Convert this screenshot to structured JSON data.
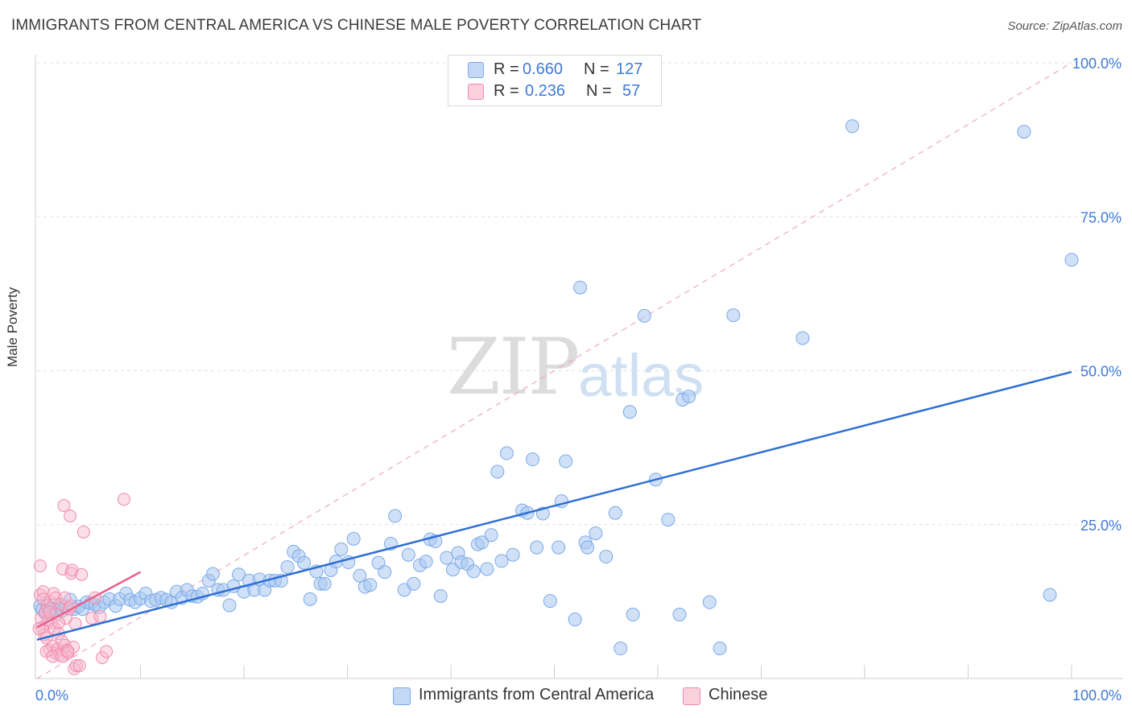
{
  "header": {
    "title": "IMMIGRANTS FROM CENTRAL AMERICA VS CHINESE MALE POVERTY CORRELATION CHART",
    "source": "Source: ZipAtlas.com"
  },
  "watermark": {
    "zip": "ZIP",
    "atlas": "atlas"
  },
  "stats": [
    {
      "r_label": "R =",
      "r_value": "0.660",
      "n_label": "N =",
      "n_value": "127",
      "color": "#a9c8f0"
    },
    {
      "r_label": "R =",
      "r_value": "0.236",
      "n_label": "N =",
      "n_value": "57",
      "color": "#f6b8cb"
    }
  ],
  "legend": [
    {
      "label": "Immigrants from Central America",
      "color": "#a9c8f0"
    },
    {
      "label": "Chinese",
      "color": "#f6b8cb"
    }
  ],
  "chart_data": {
    "type": "scatter",
    "title": "IMMIGRANTS FROM CENTRAL AMERICA VS CHINESE MALE POVERTY CORRELATION CHART",
    "xlabel": "",
    "ylabel": "Male Poverty",
    "xlim": [
      0,
      100
    ],
    "ylim": [
      0,
      100
    ],
    "x_tick_labels": [
      "0.0%",
      "100.0%"
    ],
    "y_tick_labels": [
      "25.0%",
      "50.0%",
      "75.0%",
      "100.0%"
    ],
    "y_ticks": [
      25,
      50,
      75,
      100
    ],
    "grid": true,
    "legend_position": "bottom",
    "series": [
      {
        "name": "Immigrants from Central America",
        "color": "#7baae8",
        "trend": {
          "x": [
            0,
            100
          ],
          "y": [
            6.3,
            49.8
          ],
          "color": "#2f6fd3"
        },
        "points": [
          [
            0.3,
            11.8
          ],
          [
            0.5,
            11.2
          ],
          [
            0.8,
            10.6
          ],
          [
            1.0,
            11.9
          ],
          [
            1.2,
            11.2
          ],
          [
            1.4,
            10.8
          ],
          [
            1.6,
            11.4
          ],
          [
            1.8,
            11.1
          ],
          [
            2.2,
            11.8
          ],
          [
            2.5,
            11.1
          ],
          [
            2.8,
            11.6
          ],
          [
            3.2,
            12.8
          ],
          [
            3.6,
            11.3
          ],
          [
            4.0,
            11.7
          ],
          [
            4.4,
            11.3
          ],
          [
            4.8,
            12.4
          ],
          [
            5.2,
            12.2
          ],
          [
            5.6,
            12.0
          ],
          [
            6.0,
            11.6
          ],
          [
            6.5,
            12.4
          ],
          [
            7.0,
            12.9
          ],
          [
            7.6,
            11.8
          ],
          [
            8.0,
            12.9
          ],
          [
            8.6,
            13.8
          ],
          [
            9.0,
            12.8
          ],
          [
            9.5,
            12.4
          ],
          [
            10.0,
            13.0
          ],
          [
            10.5,
            13.8
          ],
          [
            11.0,
            12.6
          ],
          [
            11.5,
            12.8
          ],
          [
            12.0,
            13.1
          ],
          [
            12.5,
            12.8
          ],
          [
            13.0,
            12.4
          ],
          [
            13.5,
            14.1
          ],
          [
            14.0,
            13.1
          ],
          [
            14.5,
            14.4
          ],
          [
            15.0,
            13.4
          ],
          [
            15.5,
            13.3
          ],
          [
            16.0,
            13.8
          ],
          [
            16.6,
            15.9
          ],
          [
            17.0,
            17.0
          ],
          [
            17.5,
            14.4
          ],
          [
            18.0,
            14.4
          ],
          [
            18.6,
            11.9
          ],
          [
            19.0,
            15.0
          ],
          [
            19.5,
            16.9
          ],
          [
            20.0,
            14.1
          ],
          [
            20.5,
            15.9
          ],
          [
            21.0,
            14.4
          ],
          [
            21.5,
            16.1
          ],
          [
            22.0,
            14.4
          ],
          [
            22.5,
            15.9
          ],
          [
            23.0,
            15.9
          ],
          [
            23.6,
            15.9
          ],
          [
            24.2,
            18.1
          ],
          [
            24.8,
            20.6
          ],
          [
            25.3,
            19.9
          ],
          [
            25.8,
            18.8
          ],
          [
            26.4,
            12.9
          ],
          [
            27.0,
            17.4
          ],
          [
            27.4,
            15.4
          ],
          [
            27.8,
            15.4
          ],
          [
            28.4,
            17.6
          ],
          [
            28.9,
            19.0
          ],
          [
            29.4,
            21.0
          ],
          [
            30.1,
            18.9
          ],
          [
            30.6,
            22.7
          ],
          [
            31.2,
            16.7
          ],
          [
            31.7,
            14.9
          ],
          [
            32.2,
            15.2
          ],
          [
            33.0,
            18.8
          ],
          [
            33.6,
            17.3
          ],
          [
            34.2,
            21.9
          ],
          [
            34.6,
            26.4
          ],
          [
            35.5,
            14.4
          ],
          [
            35.9,
            20.1
          ],
          [
            36.4,
            15.4
          ],
          [
            37.0,
            18.4
          ],
          [
            37.6,
            19.0
          ],
          [
            38.0,
            22.6
          ],
          [
            38.5,
            22.3
          ],
          [
            39.0,
            13.4
          ],
          [
            39.6,
            19.6
          ],
          [
            40.2,
            17.7
          ],
          [
            40.7,
            20.4
          ],
          [
            41.0,
            18.9
          ],
          [
            41.6,
            18.6
          ],
          [
            42.2,
            17.4
          ],
          [
            42.6,
            21.8
          ],
          [
            43.0,
            22.1
          ],
          [
            43.5,
            17.8
          ],
          [
            43.9,
            23.3
          ],
          [
            44.5,
            33.6
          ],
          [
            44.9,
            19.1
          ],
          [
            45.4,
            36.6
          ],
          [
            46.0,
            20.1
          ],
          [
            46.9,
            27.3
          ],
          [
            47.4,
            26.9
          ],
          [
            47.9,
            35.6
          ],
          [
            48.3,
            21.3
          ],
          [
            48.9,
            26.8
          ],
          [
            49.6,
            12.6
          ],
          [
            50.4,
            21.3
          ],
          [
            50.7,
            28.8
          ],
          [
            51.1,
            35.3
          ],
          [
            52.0,
            9.6
          ],
          [
            52.5,
            63.5
          ],
          [
            53.0,
            22.1
          ],
          [
            53.2,
            21.3
          ],
          [
            54.0,
            23.6
          ],
          [
            55.0,
            19.8
          ],
          [
            55.9,
            26.9
          ],
          [
            56.4,
            4.9
          ],
          [
            57.3,
            43.3
          ],
          [
            57.6,
            10.4
          ],
          [
            58.7,
            58.9
          ],
          [
            59.8,
            32.3
          ],
          [
            61.0,
            25.8
          ],
          [
            62.1,
            10.4
          ],
          [
            62.4,
            45.3
          ],
          [
            63.0,
            45.8
          ],
          [
            65.0,
            12.4
          ],
          [
            66.0,
            4.9
          ],
          [
            67.3,
            59.0
          ],
          [
            74.0,
            55.3
          ],
          [
            78.8,
            89.7
          ],
          [
            95.4,
            88.8
          ],
          [
            97.9,
            13.6
          ],
          [
            100.0,
            68.0
          ]
        ]
      },
      {
        "name": "Chinese",
        "color": "#f28aac",
        "trend": {
          "x": [
            0,
            10
          ],
          "y": [
            8.3,
            17.3
          ],
          "color": "#e8608e"
        },
        "points": [
          [
            0.3,
            13.6
          ],
          [
            0.4,
            9.8
          ],
          [
            0.5,
            8.3
          ],
          [
            0.6,
            14.1
          ],
          [
            0.7,
            7.1
          ],
          [
            0.8,
            10.8
          ],
          [
            0.9,
            6.6
          ],
          [
            1.0,
            11.8
          ],
          [
            1.1,
            9.4
          ],
          [
            1.2,
            4.6
          ],
          [
            1.3,
            12.4
          ],
          [
            1.4,
            9.1
          ],
          [
            1.5,
            5.3
          ],
          [
            1.6,
            13.8
          ],
          [
            1.7,
            8.1
          ],
          [
            1.8,
            4.1
          ],
          [
            1.9,
            10.4
          ],
          [
            2.0,
            4.8
          ],
          [
            2.1,
            7.3
          ],
          [
            2.2,
            3.9
          ],
          [
            2.3,
            12.1
          ],
          [
            2.4,
            6.1
          ],
          [
            2.5,
            17.8
          ],
          [
            2.6,
            28.1
          ],
          [
            2.7,
            5.4
          ],
          [
            2.8,
            9.8
          ],
          [
            2.9,
            4.6
          ],
          [
            3.0,
            4.1
          ],
          [
            3.1,
            11.3
          ],
          [
            3.2,
            26.4
          ],
          [
            3.3,
            17.1
          ],
          [
            3.4,
            17.6
          ],
          [
            3.5,
            5.1
          ],
          [
            3.6,
            1.6
          ],
          [
            3.7,
            8.9
          ],
          [
            3.8,
            2.1
          ],
          [
            0.2,
            8.1
          ],
          [
            0.3,
            18.3
          ],
          [
            0.6,
            12.9
          ],
          [
            0.9,
            4.4
          ],
          [
            1.2,
            10.8
          ],
          [
            1.5,
            3.6
          ],
          [
            1.8,
            13.1
          ],
          [
            2.1,
            9.1
          ],
          [
            2.4,
            3.6
          ],
          [
            2.7,
            13.1
          ],
          [
            3.0,
            4.4
          ],
          [
            3.3,
            11.8
          ],
          [
            4.1,
            2.1
          ],
          [
            4.3,
            16.9
          ],
          [
            4.5,
            23.8
          ],
          [
            5.3,
            9.8
          ],
          [
            5.6,
            13.1
          ],
          [
            6.1,
            10.1
          ],
          [
            6.3,
            3.4
          ],
          [
            6.7,
            4.4
          ],
          [
            8.4,
            29.1
          ]
        ]
      }
    ]
  }
}
